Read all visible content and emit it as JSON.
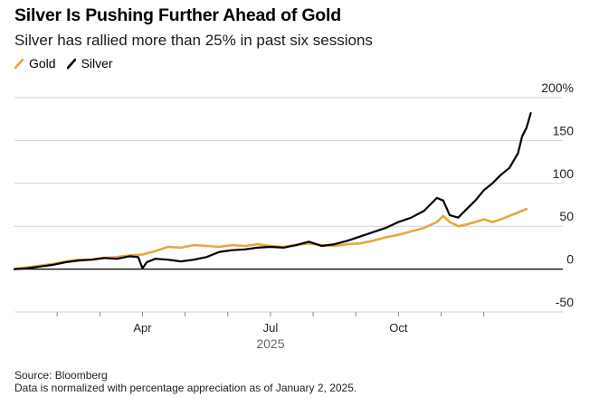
{
  "chart_data": {
    "type": "line",
    "title": "Silver Is Pushing Further Ahead of Gold",
    "subtitle": "Silver has rallied more than 25% in past six sessions",
    "xlabel": "2025",
    "ylabel": "",
    "ylim": [
      -50,
      200
    ],
    "yticks": [
      -50,
      0,
      50,
      100,
      150,
      200
    ],
    "ytick_labels": [
      "-50",
      "0",
      "50",
      "100",
      "150",
      "200%"
    ],
    "xticks": [
      {
        "label": "Apr",
        "month": 3
      },
      {
        "label": "Jul",
        "month": 6
      },
      {
        "label": "Oct",
        "month": 9
      }
    ],
    "xlim_months": [
      0,
      12.3
    ],
    "legend_position": "top-left",
    "grid": true,
    "colors": {
      "Gold": "#e8a73c",
      "Silver": "#000000"
    },
    "series": [
      {
        "name": "Gold",
        "x": [
          0,
          0.3,
          0.6,
          0.9,
          1.2,
          1.5,
          1.8,
          2.1,
          2.4,
          2.7,
          3.0,
          3.3,
          3.6,
          3.9,
          4.2,
          4.5,
          4.8,
          5.1,
          5.4,
          5.7,
          6.0,
          6.3,
          6.6,
          6.9,
          7.2,
          7.5,
          7.8,
          8.1,
          8.4,
          8.7,
          9.0,
          9.3,
          9.6,
          9.9,
          10.05,
          10.2,
          10.4,
          10.6,
          10.8,
          11.0,
          11.2,
          11.4,
          11.6,
          11.8,
          12.0
        ],
        "values": [
          0,
          2,
          4,
          6,
          9,
          11,
          11,
          13,
          14,
          16,
          17,
          21,
          26,
          25,
          28,
          27,
          26,
          28,
          27,
          29,
          27,
          26,
          28,
          30,
          28,
          27,
          29,
          30,
          33,
          37,
          40,
          44,
          48,
          55,
          62,
          55,
          50,
          52,
          55,
          58,
          55,
          58,
          62,
          66,
          70
        ]
      },
      {
        "name": "Silver",
        "x": [
          0,
          0.3,
          0.6,
          0.9,
          1.2,
          1.5,
          1.8,
          2.1,
          2.4,
          2.7,
          2.9,
          3.0,
          3.1,
          3.3,
          3.6,
          3.9,
          4.2,
          4.5,
          4.8,
          5.1,
          5.4,
          5.7,
          6.0,
          6.3,
          6.6,
          6.9,
          7.2,
          7.5,
          7.8,
          8.1,
          8.4,
          8.7,
          9.0,
          9.3,
          9.6,
          9.9,
          10.05,
          10.2,
          10.4,
          10.6,
          10.8,
          11.0,
          11.2,
          11.4,
          11.6,
          11.8,
          11.9,
          12.0,
          12.1
        ],
        "values": [
          0,
          1,
          3,
          5,
          8,
          10,
          11,
          13,
          12,
          15,
          14,
          1,
          8,
          12,
          11,
          9,
          11,
          14,
          20,
          22,
          23,
          25,
          26,
          25,
          28,
          32,
          27,
          29,
          33,
          38,
          43,
          48,
          55,
          60,
          68,
          83,
          80,
          63,
          60,
          70,
          80,
          92,
          100,
          110,
          118,
          135,
          155,
          165,
          182
        ]
      }
    ],
    "source": "Source: Bloomberg",
    "note": "Data is normalized with percentage appreciation as of January 2, 2025."
  }
}
